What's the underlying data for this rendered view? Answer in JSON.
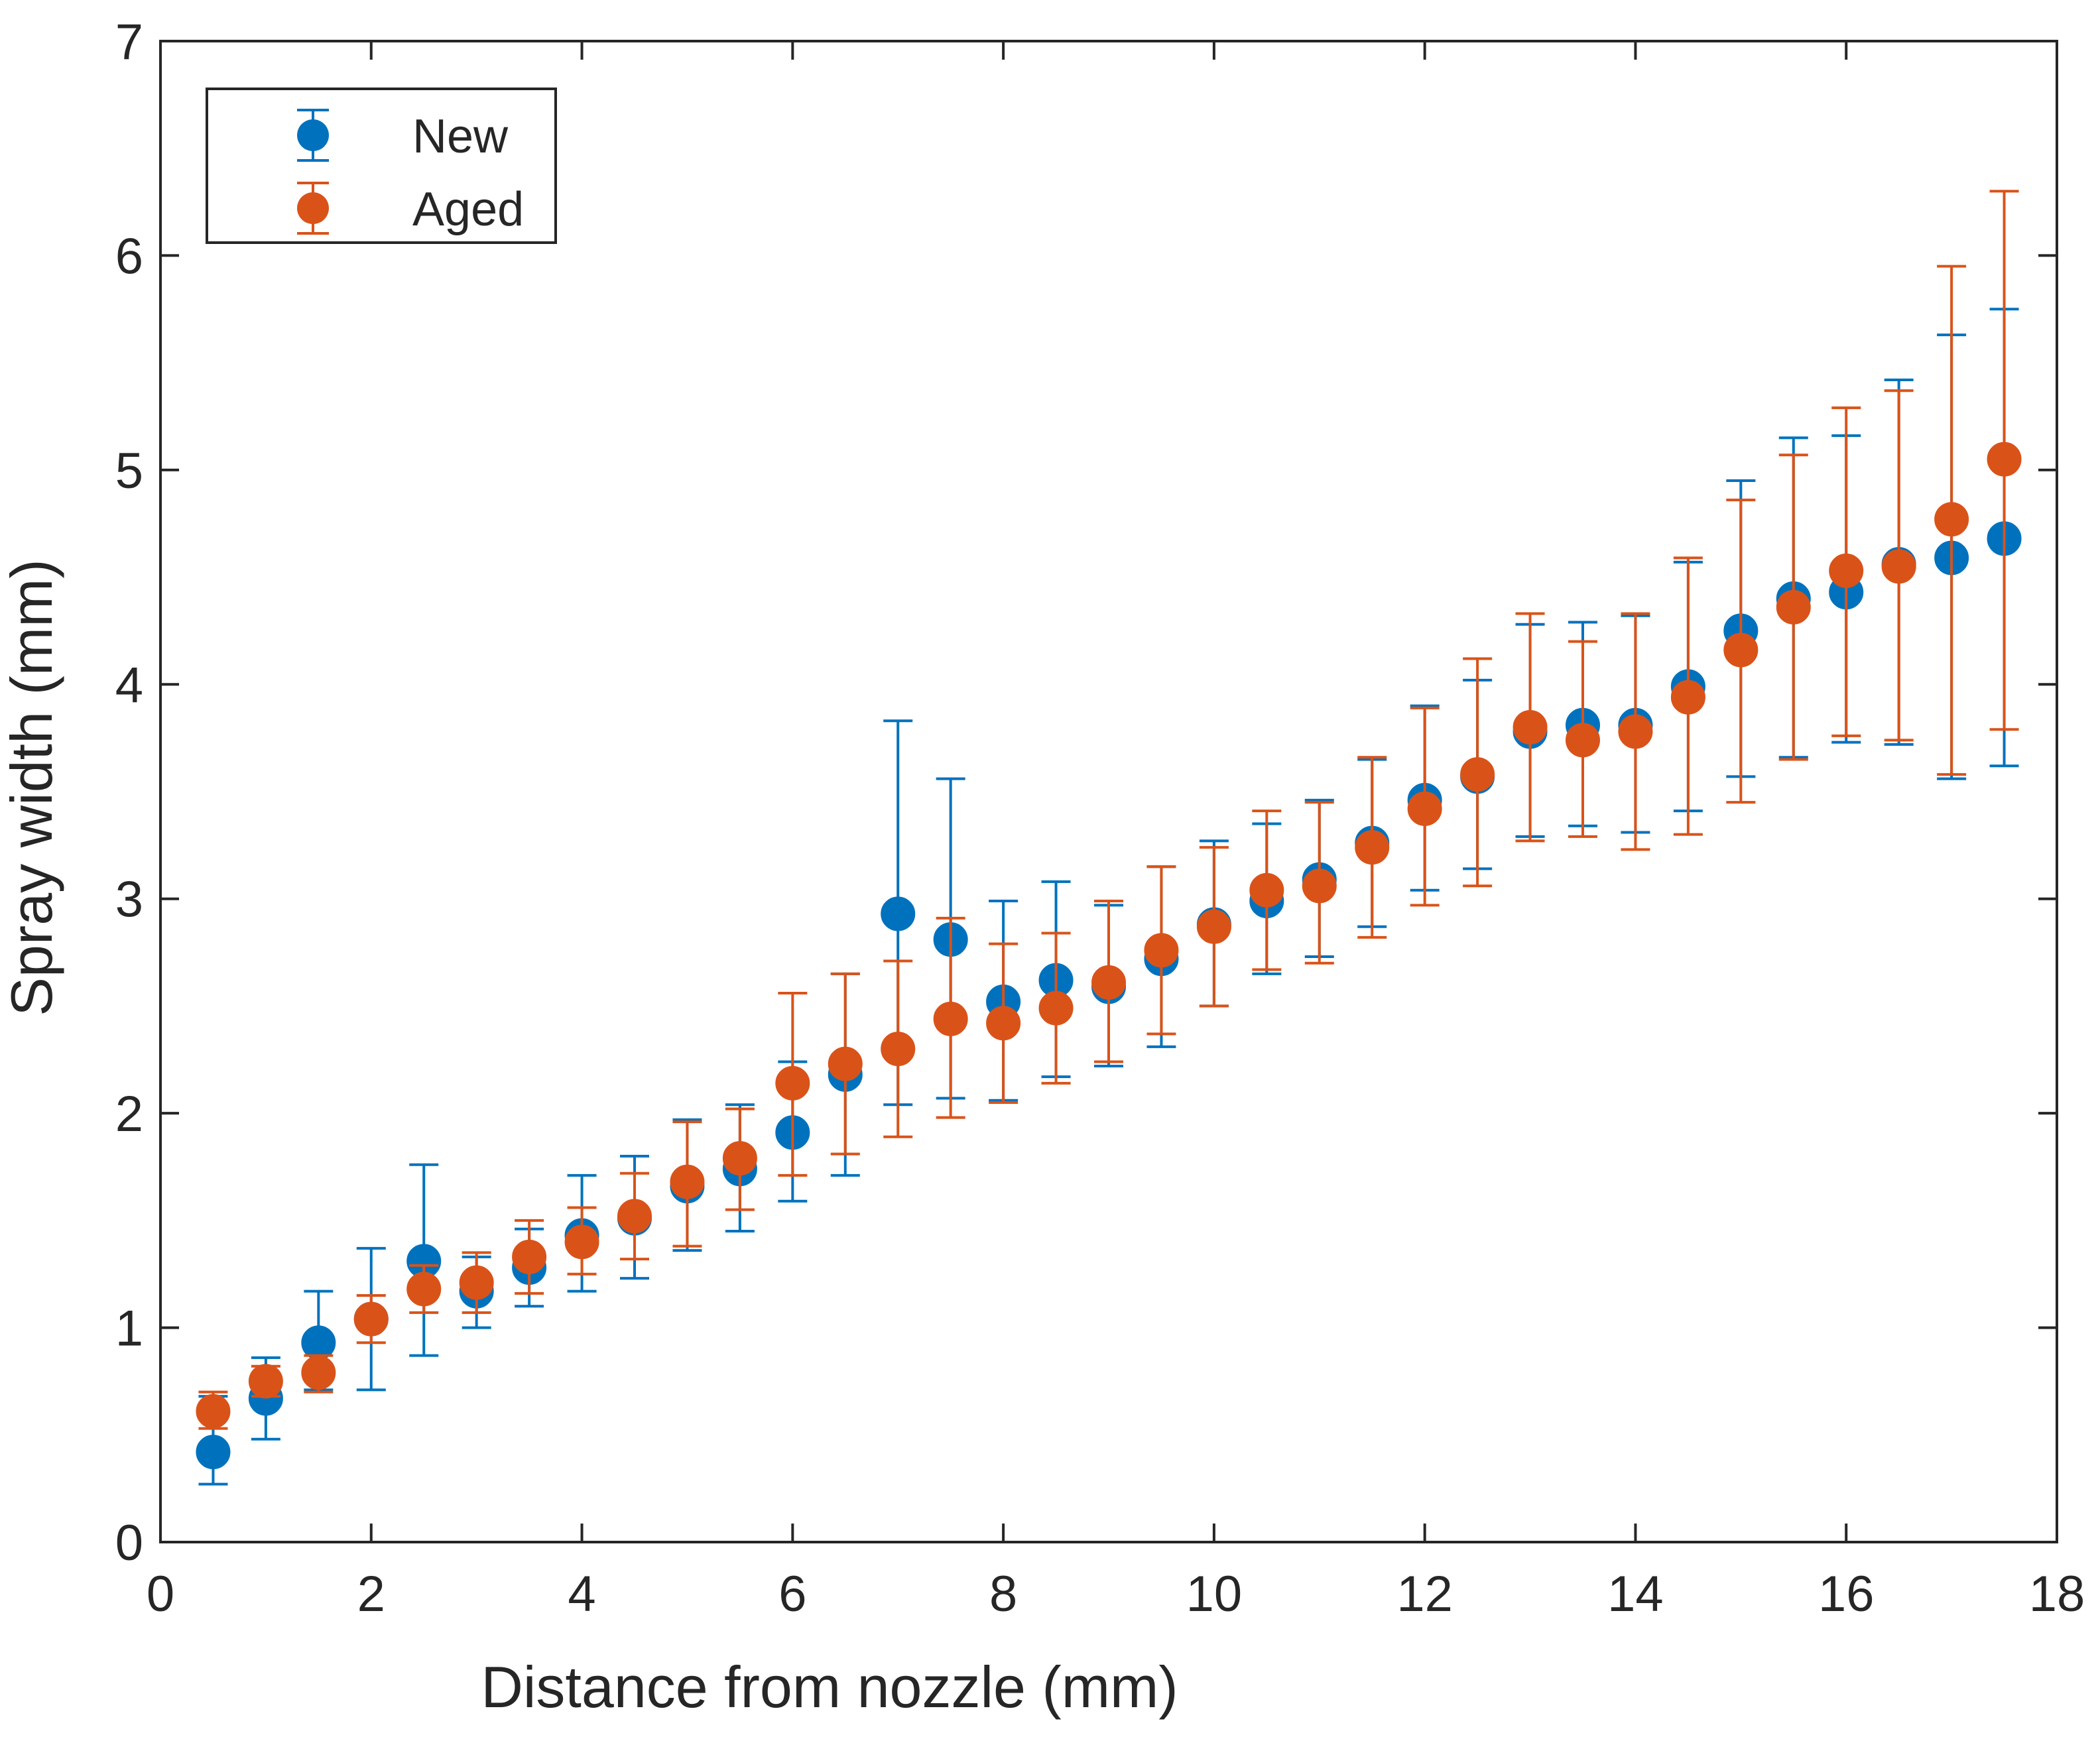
{
  "chart_data": {
    "type": "scatter",
    "title": "",
    "xlabel": "Distance from nozzle (mm)",
    "ylabel": "Spray width (mm)",
    "xlim": [
      0,
      18
    ],
    "ylim": [
      0,
      7
    ],
    "xticks": [
      0,
      2,
      4,
      6,
      8,
      10,
      12,
      14,
      16,
      18
    ],
    "yticks": [
      0,
      1,
      2,
      3,
      4,
      5,
      6,
      7
    ],
    "grid": false,
    "legend_position": "top-left",
    "error_bars": true,
    "x": [
      0.5,
      1,
      1.5,
      2,
      2.5,
      3,
      3.5,
      4,
      4.5,
      5,
      5.5,
      6,
      6.5,
      7,
      7.5,
      8,
      8.5,
      9,
      9.5,
      10,
      10.5,
      11,
      11.5,
      12,
      12.5,
      13,
      13.5,
      14,
      14.5,
      15,
      15.5,
      16,
      16.5,
      17,
      17.5
    ],
    "series": [
      {
        "name": "New",
        "color": "#0072bd",
        "values": [
          0.42,
          0.67,
          0.93,
          1.04,
          1.31,
          1.17,
          1.28,
          1.43,
          1.51,
          1.66,
          1.74,
          1.91,
          2.18,
          2.93,
          2.81,
          2.52,
          2.62,
          2.59,
          2.72,
          2.88,
          2.99,
          3.09,
          3.26,
          3.46,
          3.57,
          3.78,
          3.81,
          3.81,
          3.99,
          4.25,
          4.4,
          4.43,
          4.56,
          4.59,
          4.68
        ],
        "err_low": [
          0.27,
          0.48,
          0.71,
          0.71,
          0.87,
          1.0,
          1.1,
          1.17,
          1.23,
          1.36,
          1.45,
          1.59,
          1.71,
          2.04,
          2.07,
          2.06,
          2.17,
          2.22,
          2.31,
          2.5,
          2.65,
          2.73,
          2.87,
          3.04,
          3.14,
          3.29,
          3.34,
          3.31,
          3.41,
          3.57,
          3.66,
          3.73,
          3.72,
          3.56,
          3.62
        ],
        "err_high": [
          0.68,
          0.86,
          1.17,
          1.37,
          1.76,
          1.33,
          1.46,
          1.71,
          1.8,
          1.97,
          2.04,
          2.24,
          2.65,
          3.83,
          3.56,
          2.99,
          3.08,
          2.97,
          3.15,
          3.27,
          3.35,
          3.46,
          3.65,
          3.9,
          4.02,
          4.28,
          4.29,
          4.32,
          4.57,
          4.95,
          5.15,
          5.16,
          5.42,
          5.63,
          5.75
        ]
      },
      {
        "name": "Aged",
        "color": "#d95319",
        "values": [
          0.61,
          0.75,
          0.79,
          1.04,
          1.18,
          1.21,
          1.33,
          1.4,
          1.52,
          1.68,
          1.79,
          2.14,
          2.23,
          2.3,
          2.44,
          2.42,
          2.49,
          2.61,
          2.76,
          2.87,
          3.04,
          3.06,
          3.24,
          3.42,
          3.58,
          3.8,
          3.74,
          3.78,
          3.94,
          4.16,
          4.36,
          4.53,
          4.55,
          4.77,
          5.05
        ],
        "err_low": [
          0.53,
          0.68,
          0.7,
          0.93,
          1.07,
          1.07,
          1.16,
          1.25,
          1.32,
          1.38,
          1.55,
          1.71,
          1.81,
          1.89,
          1.98,
          2.05,
          2.14,
          2.24,
          2.37,
          2.5,
          2.67,
          2.7,
          2.82,
          2.97,
          3.06,
          3.27,
          3.29,
          3.23,
          3.3,
          3.45,
          3.65,
          3.76,
          3.74,
          3.58,
          3.79
        ],
        "err_high": [
          0.7,
          0.82,
          0.87,
          1.15,
          1.29,
          1.35,
          1.5,
          1.56,
          1.72,
          1.96,
          2.02,
          2.56,
          2.65,
          2.71,
          2.91,
          2.79,
          2.84,
          2.99,
          3.15,
          3.24,
          3.41,
          3.45,
          3.66,
          3.89,
          4.12,
          4.33,
          4.2,
          4.33,
          4.59,
          4.86,
          5.07,
          5.29,
          5.37,
          5.95,
          6.3
        ]
      }
    ]
  }
}
